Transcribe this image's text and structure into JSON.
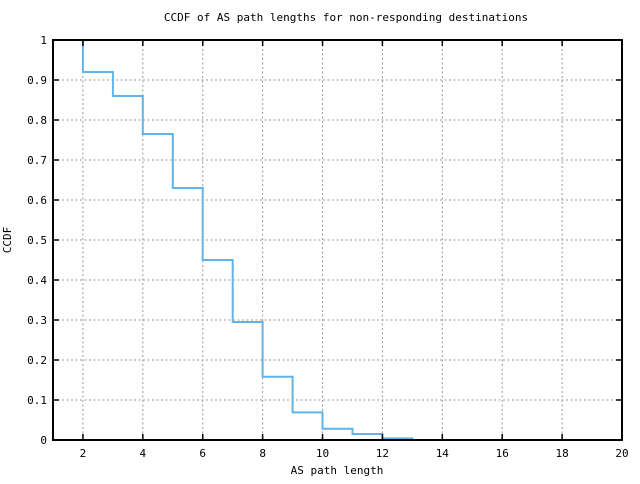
{
  "chart_data": {
    "type": "line",
    "subtype": "step-ccdf",
    "title": "CCDF of AS path lengths for non-responding destinations",
    "xlabel": "AS path length",
    "ylabel": "CCDF",
    "xlim": [
      1,
      20
    ],
    "ylim": [
      0,
      1
    ],
    "grid": true,
    "legend": "none",
    "x_ticks": [
      {
        "value": 2,
        "label": "2"
      },
      {
        "value": 4,
        "label": "4"
      },
      {
        "value": 6,
        "label": "6"
      },
      {
        "value": 8,
        "label": "8"
      },
      {
        "value": 10,
        "label": "10"
      },
      {
        "value": 12,
        "label": "12"
      },
      {
        "value": 14,
        "label": "14"
      },
      {
        "value": 16,
        "label": "16"
      },
      {
        "value": 18,
        "label": "18"
      },
      {
        "value": 20,
        "label": "20"
      }
    ],
    "y_ticks": [
      {
        "value": 0,
        "label": "0"
      },
      {
        "value": 0.1,
        "label": "0.1"
      },
      {
        "value": 0.2,
        "label": "0.2"
      },
      {
        "value": 0.3,
        "label": "0.3"
      },
      {
        "value": 0.4,
        "label": "0.4"
      },
      {
        "value": 0.5,
        "label": "0.5"
      },
      {
        "value": 0.6,
        "label": "0.6"
      },
      {
        "value": 0.7,
        "label": "0.7"
      },
      {
        "value": 0.8,
        "label": "0.8"
      },
      {
        "value": 0.9,
        "label": "0.9"
      },
      {
        "value": 1,
        "label": "1"
      }
    ],
    "series": [
      {
        "name": "CCDF of AS path length",
        "style": "step",
        "points": [
          [
            2,
            1.0
          ],
          [
            2,
            0.92
          ],
          [
            3,
            0.92
          ],
          [
            3,
            0.86
          ],
          [
            4,
            0.86
          ],
          [
            4,
            0.765
          ],
          [
            5,
            0.765
          ],
          [
            5,
            0.63
          ],
          [
            6,
            0.63
          ],
          [
            6,
            0.45
          ],
          [
            7,
            0.45
          ],
          [
            7,
            0.295
          ],
          [
            8,
            0.295
          ],
          [
            8,
            0.158
          ],
          [
            9,
            0.158
          ],
          [
            9,
            0.069
          ],
          [
            10,
            0.069
          ],
          [
            10,
            0.028
          ],
          [
            11,
            0.028
          ],
          [
            11,
            0.015
          ],
          [
            12,
            0.015
          ],
          [
            12,
            0.004
          ],
          [
            13,
            0.004
          ],
          [
            13,
            0.0
          ]
        ]
      }
    ],
    "colors": {
      "line": "#5fb4e8",
      "grid": "#9a9a9a",
      "frame": "#000000",
      "background": "#ffffff"
    }
  }
}
